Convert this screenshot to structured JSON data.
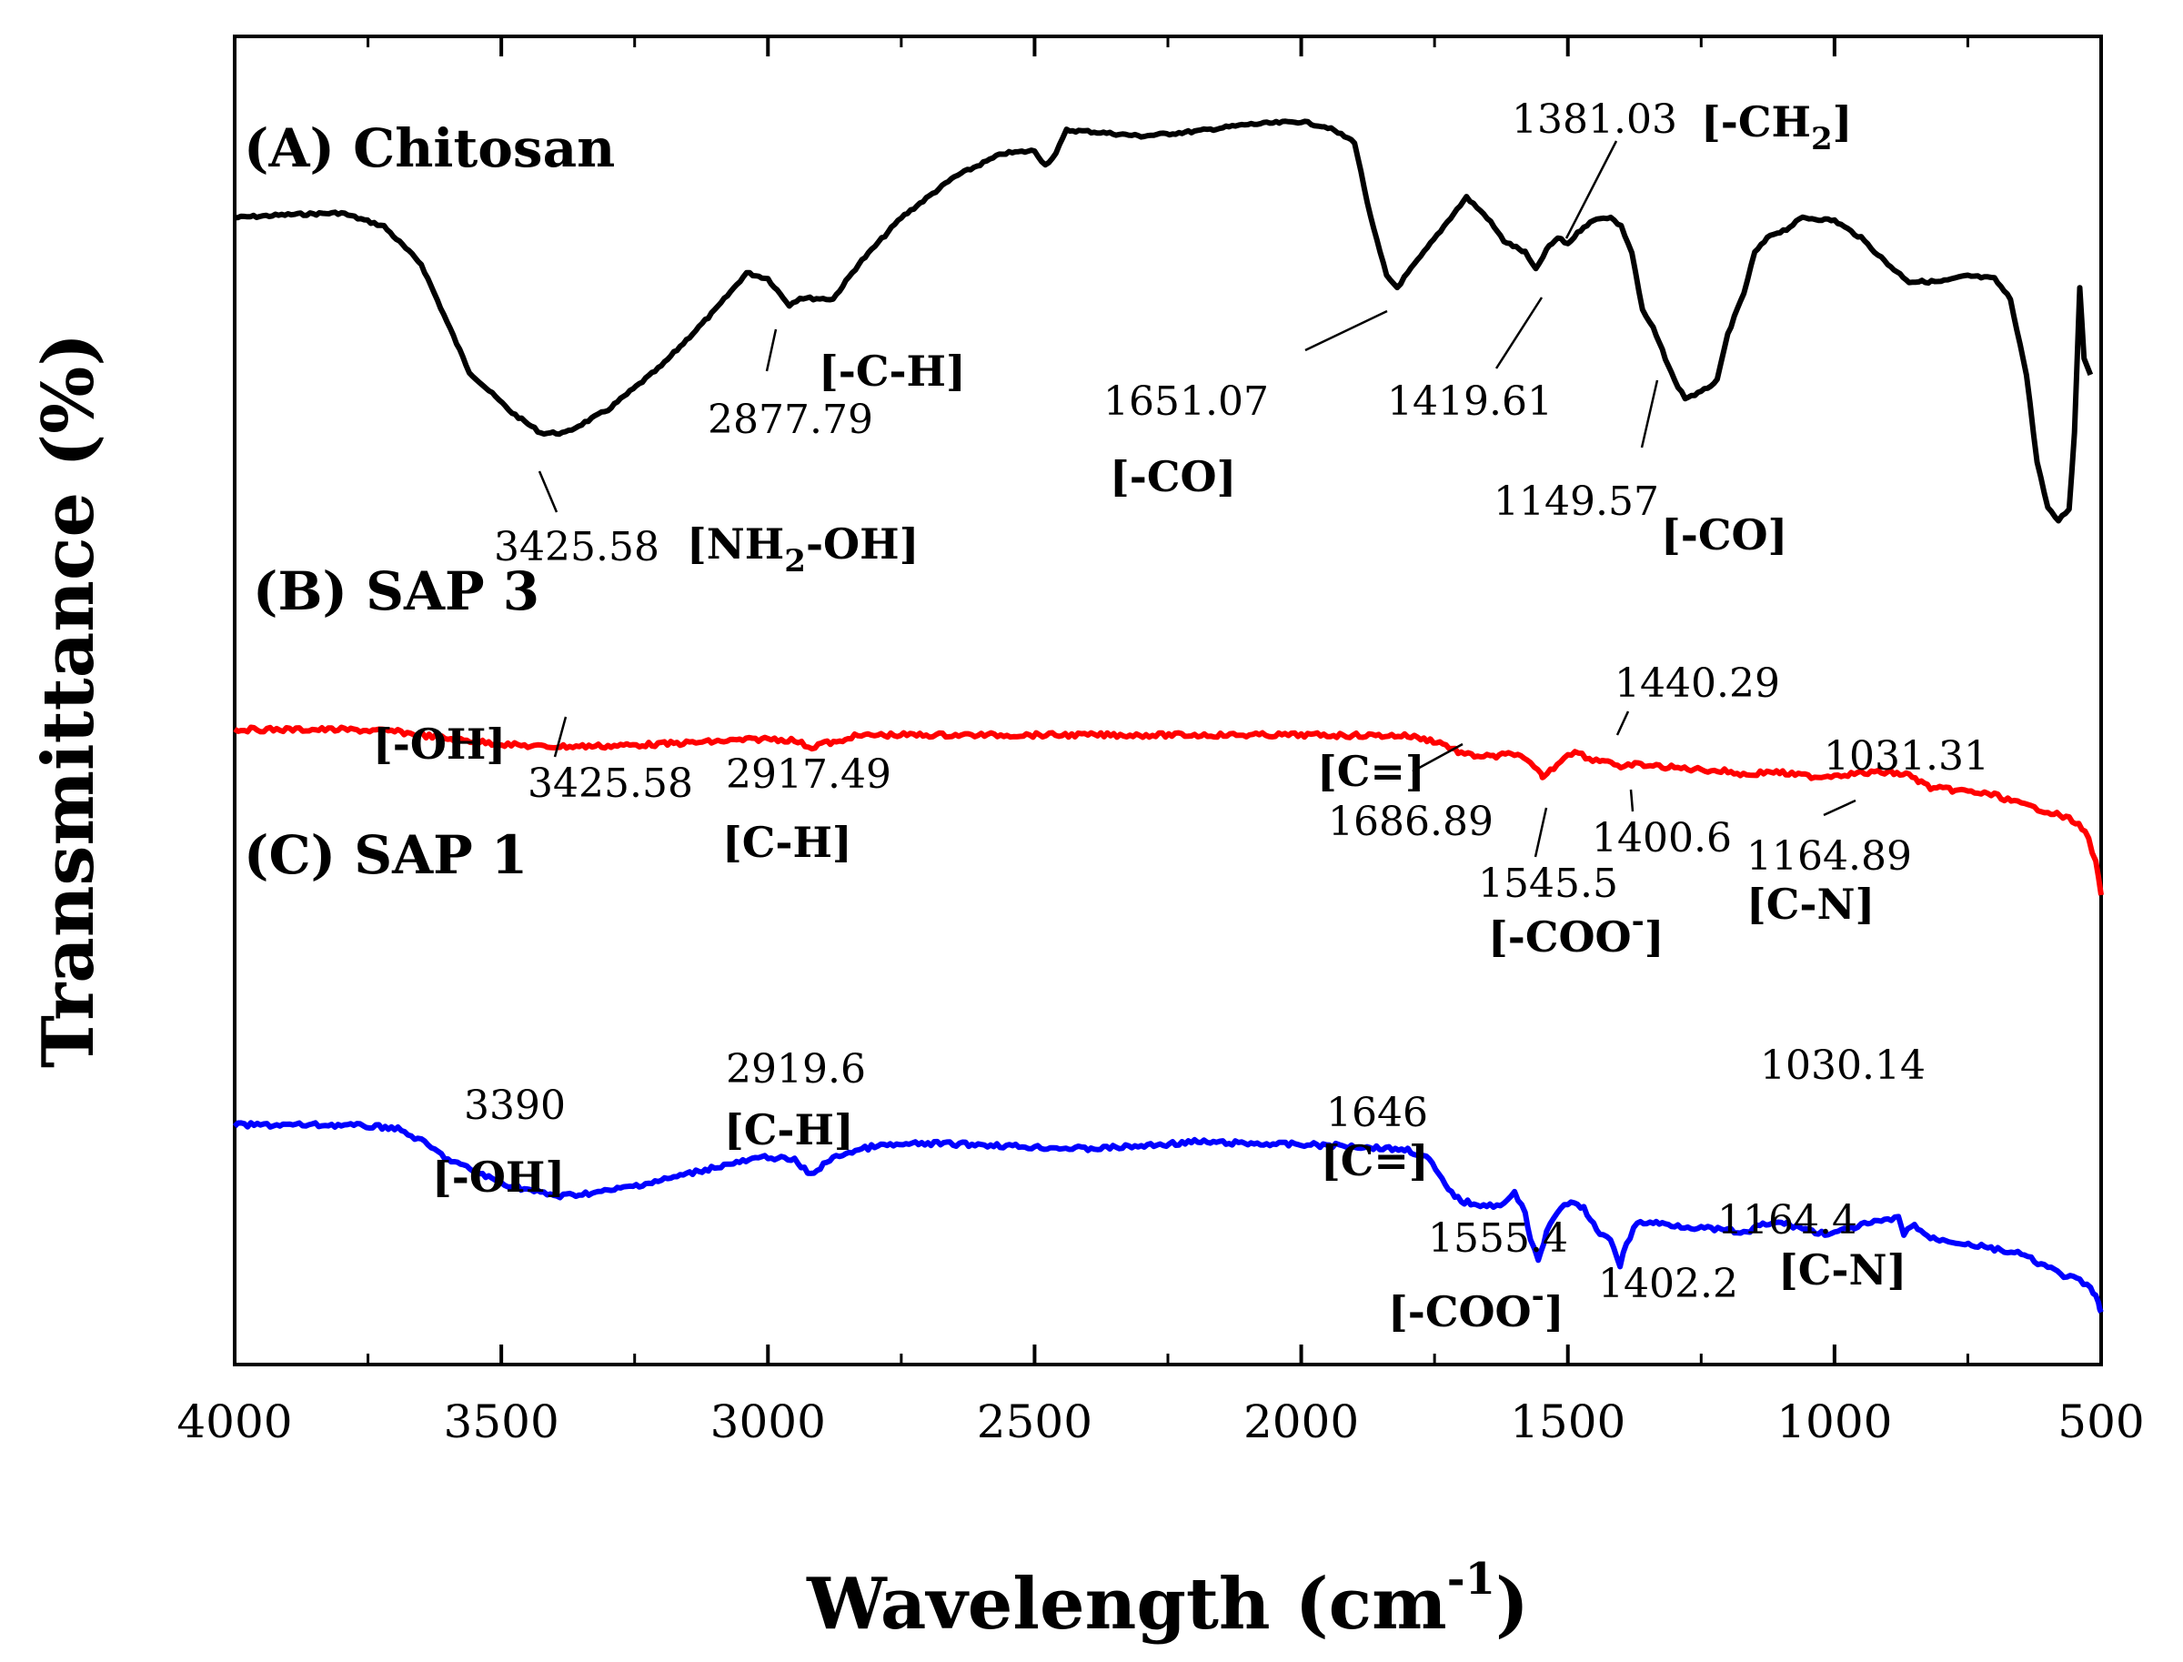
{
  "chart_data": {
    "type": "line",
    "xlabel": "Wavelength (cm-1)",
    "xlabel_main": "Wavelength (cm",
    "xlabel_sup": "-1",
    "xlabel_end": ")",
    "ylabel": "Transmittance (%)",
    "xlim": [
      4000,
      500
    ],
    "x_ticks": [
      "4000",
      "3500",
      "3000",
      "2500",
      "2000",
      "1500",
      "1000",
      "500"
    ],
    "colors": {
      "A": "#000000",
      "B": "#ff0000",
      "C": "#0000ff"
    },
    "series": [
      {
        "key": "A",
        "name": "(A) Chitosan",
        "color": "#000000",
        "points": [
          [
            4000,
            0.72
          ],
          [
            3900,
            0.725
          ],
          [
            3800,
            0.728
          ],
          [
            3720,
            0.705
          ],
          [
            3650,
            0.64
          ],
          [
            3560,
            0.455
          ],
          [
            3480,
            0.385
          ],
          [
            3425.58,
            0.35
          ],
          [
            3380,
            0.35
          ],
          [
            3300,
            0.39
          ],
          [
            3200,
            0.465
          ],
          [
            3100,
            0.56
          ],
          [
            3040,
            0.625
          ],
          [
            3000,
            0.615
          ],
          [
            2960,
            0.57
          ],
          [
            2940,
            0.582
          ],
          [
            2877.79,
            0.58
          ],
          [
            2830,
            0.64
          ],
          [
            2750,
            0.72
          ],
          [
            2650,
            0.79
          ],
          [
            2560,
            0.83
          ],
          [
            2500,
            0.835
          ],
          [
            2480,
            0.81
          ],
          [
            2460,
            0.83
          ],
          [
            2440,
            0.87
          ],
          [
            2400,
            0.868
          ],
          [
            2300,
            0.86
          ],
          [
            2200,
            0.868
          ],
          [
            2100,
            0.88
          ],
          [
            2000,
            0.885
          ],
          [
            1950,
            0.875
          ],
          [
            1900,
            0.85
          ],
          [
            1870,
            0.72
          ],
          [
            1840,
            0.62
          ],
          [
            1820,
            0.6
          ],
          [
            1800,
            0.625
          ],
          [
            1770,
            0.66
          ],
          [
            1720,
            0.72
          ],
          [
            1690,
            0.755
          ],
          [
            1651.07,
            0.72
          ],
          [
            1620,
            0.68
          ],
          [
            1580,
            0.66
          ],
          [
            1560,
            0.63
          ],
          [
            1540,
            0.665
          ],
          [
            1519,
            0.685
          ],
          [
            1500,
            0.675
          ],
          [
            1470,
            0.705
          ],
          [
            1440,
            0.72
          ],
          [
            1419.61,
            0.72
          ],
          [
            1400,
            0.705
          ],
          [
            1380,
            0.66
          ],
          [
            1360,
            0.56
          ],
          [
            1340,
            0.53
          ],
          [
            1300,
            0.44
          ],
          [
            1280,
            0.41
          ],
          [
            1250,
            0.42
          ],
          [
            1220,
            0.44
          ],
          [
            1200,
            0.52
          ],
          [
            1170,
            0.59
          ],
          [
            1149.57,
            0.66
          ],
          [
            1120,
            0.69
          ],
          [
            1090,
            0.7
          ],
          [
            1060,
            0.72
          ],
          [
            1000,
            0.715
          ],
          [
            950,
            0.685
          ],
          [
            900,
            0.64
          ],
          [
            860,
            0.61
          ],
          [
            800,
            0.61
          ],
          [
            750,
            0.62
          ],
          [
            700,
            0.615
          ],
          [
            670,
            0.58
          ],
          [
            640,
            0.45
          ],
          [
            620,
            0.3
          ],
          [
            600,
            0.22
          ],
          [
            580,
            0.2
          ],
          [
            560,
            0.22
          ],
          [
            550,
            0.35
          ],
          [
            540,
            0.6
          ],
          [
            532,
            0.48
          ],
          [
            520,
            0.45
          ]
        ]
      },
      {
        "key": "B",
        "name": "(B) SAP 3",
        "color": "#ff0000",
        "points": [
          [
            4000,
            0.495
          ],
          [
            3800,
            0.495
          ],
          [
            3700,
            0.49
          ],
          [
            3600,
            0.47
          ],
          [
            3500,
            0.455
          ],
          [
            3425.58,
            0.448
          ],
          [
            3300,
            0.45
          ],
          [
            3200,
            0.455
          ],
          [
            3100,
            0.462
          ],
          [
            3000,
            0.47
          ],
          [
            2950,
            0.465
          ],
          [
            2917.49,
            0.445
          ],
          [
            2900,
            0.458
          ],
          [
            2860,
            0.46
          ],
          [
            2850,
            0.475
          ],
          [
            2800,
            0.48
          ],
          [
            2600,
            0.48
          ],
          [
            2400,
            0.48
          ],
          [
            2200,
            0.48
          ],
          [
            2000,
            0.48
          ],
          [
            1800,
            0.478
          ],
          [
            1740,
            0.46
          ],
          [
            1700,
            0.43
          ],
          [
            1686.89,
            0.425
          ],
          [
            1640,
            0.42
          ],
          [
            1600,
            0.43
          ],
          [
            1570,
            0.4
          ],
          [
            1550,
            0.37
          ],
          [
            1545.5,
            0.365
          ],
          [
            1520,
            0.4
          ],
          [
            1500,
            0.43
          ],
          [
            1480,
            0.432
          ],
          [
            1460,
            0.415
          ],
          [
            1440.29,
            0.41
          ],
          [
            1425,
            0.412
          ],
          [
            1400.6,
            0.385
          ],
          [
            1380,
            0.4
          ],
          [
            1340,
            0.395
          ],
          [
            1300,
            0.39
          ],
          [
            1250,
            0.385
          ],
          [
            1200,
            0.38
          ],
          [
            1164.89,
            0.37
          ],
          [
            1120,
            0.38
          ],
          [
            1080,
            0.372
          ],
          [
            1031.31,
            0.365
          ],
          [
            1000,
            0.37
          ],
          [
            950,
            0.375
          ],
          [
            900,
            0.378
          ],
          [
            860,
            0.37
          ],
          [
            820,
            0.335
          ],
          [
            750,
            0.325
          ],
          [
            700,
            0.315
          ],
          [
            650,
            0.29
          ],
          [
            600,
            0.27
          ],
          [
            560,
            0.25
          ],
          [
            530,
            0.22
          ],
          [
            510,
            0.13
          ],
          [
            500,
            0.04
          ]
        ]
      },
      {
        "key": "C",
        "name": "(C) SAP 1",
        "color": "#0000ff",
        "points": [
          [
            4000,
            0.385
          ],
          [
            3800,
            0.385
          ],
          [
            3700,
            0.38
          ],
          [
            3650,
            0.355
          ],
          [
            3600,
            0.32
          ],
          [
            3500,
            0.275
          ],
          [
            3420,
            0.255
          ],
          [
            3390,
            0.25
          ],
          [
            3300,
            0.26
          ],
          [
            3200,
            0.28
          ],
          [
            3100,
            0.305
          ],
          [
            3000,
            0.325
          ],
          [
            2950,
            0.318
          ],
          [
            2919.6,
            0.29
          ],
          [
            2890,
            0.315
          ],
          [
            2860,
            0.33
          ],
          [
            2800,
            0.345
          ],
          [
            2700,
            0.35
          ],
          [
            2600,
            0.348
          ],
          [
            2500,
            0.343
          ],
          [
            2400,
            0.34
          ],
          [
            2300,
            0.345
          ],
          [
            2200,
            0.353
          ],
          [
            2100,
            0.35
          ],
          [
            2000,
            0.348
          ],
          [
            1900,
            0.345
          ],
          [
            1800,
            0.338
          ],
          [
            1760,
            0.32
          ],
          [
            1730,
            0.27
          ],
          [
            1700,
            0.24
          ],
          [
            1646,
            0.232
          ],
          [
            1620,
            0.235
          ],
          [
            1600,
            0.255
          ],
          [
            1580,
            0.22
          ],
          [
            1570,
            0.17
          ],
          [
            1555.4,
            0.13
          ],
          [
            1540,
            0.18
          ],
          [
            1520,
            0.22
          ],
          [
            1500,
            0.238
          ],
          [
            1470,
            0.228
          ],
          [
            1440,
            0.175
          ],
          [
            1420,
            0.17
          ],
          [
            1402.2,
            0.12
          ],
          [
            1390,
            0.16
          ],
          [
            1370,
            0.2
          ],
          [
            1340,
            0.2
          ],
          [
            1300,
            0.195
          ],
          [
            1250,
            0.19
          ],
          [
            1200,
            0.185
          ],
          [
            1164.4,
            0.18
          ],
          [
            1140,
            0.195
          ],
          [
            1100,
            0.2
          ],
          [
            1060,
            0.19
          ],
          [
            1030.14,
            0.18
          ],
          [
            1000,
            0.18
          ],
          [
            950,
            0.195
          ],
          [
            900,
            0.205
          ],
          [
            880,
            0.208
          ],
          [
            870,
            0.18
          ],
          [
            850,
            0.195
          ],
          [
            820,
            0.17
          ],
          [
            780,
            0.165
          ],
          [
            700,
            0.15
          ],
          [
            650,
            0.14
          ],
          [
            600,
            0.115
          ],
          [
            570,
            0.1
          ],
          [
            540,
            0.09
          ],
          [
            520,
            0.075
          ],
          [
            505,
            0.05
          ],
          [
            500,
            0.03
          ]
        ]
      }
    ],
    "series_labels": [
      {
        "key": "A",
        "text": "(A) Chitosan"
      },
      {
        "key": "B",
        "text": "(B) SAP 3"
      },
      {
        "key": "C",
        "text": "(C) SAP 1"
      }
    ],
    "peak_labels": {
      "a_3425": "3425.58",
      "a_2877": "2877.79",
      "a_1651": "1651.07",
      "a_1419": "1419.61",
      "a_1381": "1381.03",
      "a_1149": "1149.57",
      "b_3425": "3425.58",
      "b_2917": "2917.49",
      "b_1686": "1686.89",
      "b_1545": "1545.5",
      "b_1440": "1440.29",
      "b_1400": "1400.6",
      "b_1164": "1164.89",
      "b_1031": "1031.31",
      "c_3390": "3390",
      "c_2919": "2919.6",
      "c_1646": "1646",
      "c_1555": "1555.4",
      "c_1402": "1402.2",
      "c_1164": "1164.4",
      "c_1030": "1030.14"
    },
    "group_labels": {
      "a_nh2oh_pre": "[NH",
      "a_nh2oh_sub": "2",
      "a_nh2oh_post": "-OH]",
      "a_ch": "[-C-H]",
      "a_co1": "[-CO]",
      "a_co2": "[-CO]",
      "a_ch2_pre": "[-CH",
      "a_ch2_sub": "2",
      "a_ch2_post": "]",
      "b_oh": "[-OH]",
      "b_ch": "[C-H]",
      "b_ceq": "[C=]",
      "b_coo_pre": "[-COO",
      "b_coo_sup": "-",
      "b_coo_post": "]",
      "b_cn": "[C-N]",
      "c_oh": "[-OH]",
      "c_ch": "[C-H]",
      "c_ceq": "[C=]",
      "c_coo_pre": "[-COO",
      "c_coo_sup": "-",
      "c_coo_post": "]",
      "c_cn": "[C-N]"
    }
  }
}
